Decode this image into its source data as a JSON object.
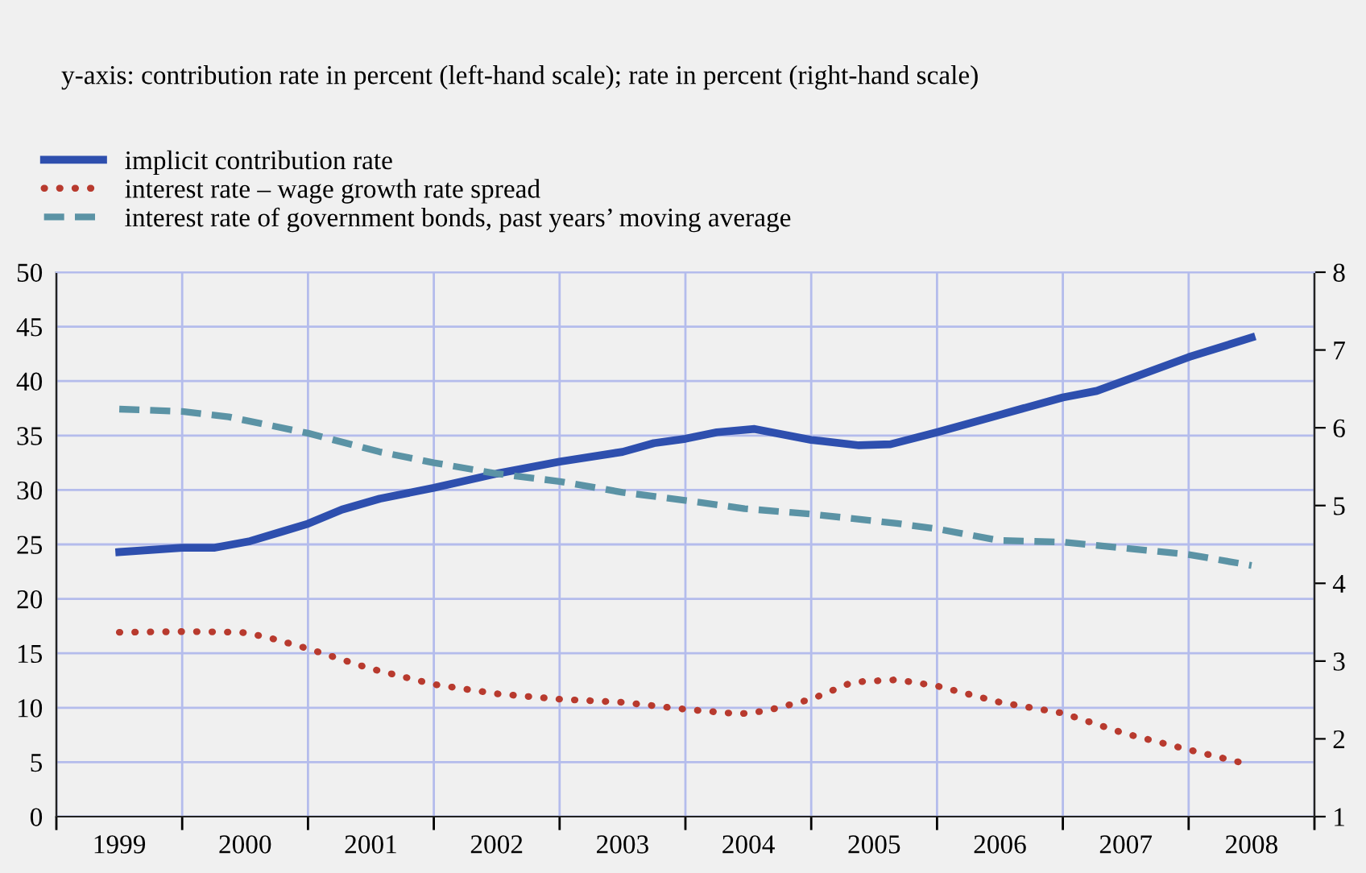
{
  "chart_data": {
    "type": "line",
    "title": "y-axis: contribution rate in percent (left-hand scale); rate in percent (right-hand scale)",
    "xlim": [
      1999,
      2009
    ],
    "xticks": [
      {
        "value": 1999,
        "label": null
      },
      {
        "value": 2000,
        "label": null
      },
      {
        "value": 2001,
        "label": null
      },
      {
        "value": 2002,
        "label": null
      },
      {
        "value": 2003,
        "label": null
      },
      {
        "value": 2004,
        "label": null
      },
      {
        "value": 2005,
        "label": null
      },
      {
        "value": 2006,
        "label": null
      },
      {
        "value": 2007,
        "label": null
      },
      {
        "value": 2008,
        "label": null
      },
      {
        "value": 2009,
        "label": null
      },
      {
        "value": 1999.5,
        "label": "1999"
      },
      {
        "value": 2000.5,
        "label": "2000"
      },
      {
        "value": 2001.5,
        "label": "2001"
      },
      {
        "value": 2002.5,
        "label": "2002"
      },
      {
        "value": 2003.5,
        "label": "2003"
      },
      {
        "value": 2004.5,
        "label": "2004"
      },
      {
        "value": 2005.5,
        "label": "2005"
      },
      {
        "value": 2006.5,
        "label": "2006"
      },
      {
        "value": 2007.5,
        "label": "2007"
      },
      {
        "value": 2008.5,
        "label": "2008"
      }
    ],
    "ylim": [
      0,
      50
    ],
    "yticks": [
      0,
      5,
      10,
      15,
      20,
      25,
      30,
      35,
      40,
      45,
      50
    ],
    "y2lim": [
      1,
      8
    ],
    "y2ticks": [
      1,
      2,
      3,
      4,
      5,
      6,
      7,
      8
    ],
    "grid": true,
    "legend": "top left",
    "marker": "none",
    "series": [
      {
        "name": "implicit contribution rate",
        "color": "#2e4fae",
        "line_style": "solid",
        "x": [
          1999.5,
          2000.0,
          2000.26,
          2000.54,
          2000.8,
          2001.0,
          2001.27,
          2001.57,
          2002.0,
          2002.5,
          2003.0,
          2003.5,
          2003.75,
          2004.0,
          2004.25,
          2004.55,
          2005.0,
          2005.38,
          2005.63,
          2006.0,
          2006.5,
          2007.0,
          2007.27,
          2008.0,
          2008.5
        ],
        "values": [
          24.3,
          24.7,
          24.7,
          25.3,
          26.2,
          26.9,
          28.2,
          29.2,
          30.2,
          31.5,
          32.6,
          33.5,
          34.3,
          34.7,
          35.3,
          35.6,
          34.6,
          34.1,
          34.2,
          35.3,
          36.9,
          38.5,
          39.1,
          42.2,
          44.0
        ]
      },
      {
        "name": "interest rate – wage growth rate spread",
        "color": "#b83a2e",
        "line_style": "dotted",
        "axis": "y2",
        "x": [
          1999.5,
          2000.05,
          2000.47,
          2000.67,
          2001.0,
          2001.48,
          2002.0,
          2002.5,
          2003.0,
          2003.5,
          2004.0,
          2004.43,
          2004.64,
          2005.0,
          2005.33,
          2005.68,
          2006.0,
          2006.5,
          2007.0,
          2007.49,
          2008.0,
          2008.43
        ],
        "values": [
          3.37,
          3.38,
          3.37,
          3.31,
          3.16,
          2.91,
          2.7,
          2.58,
          2.51,
          2.47,
          2.38,
          2.32,
          2.36,
          2.51,
          2.73,
          2.76,
          2.68,
          2.47,
          2.33,
          2.07,
          1.86,
          1.69
        ]
      },
      {
        "name": "interest rate of government bonds, past years’ moving average",
        "color": "#5b93a5",
        "line_style": "dashed",
        "axis": "y2",
        "x": [
          1999.5,
          2000.0,
          2000.37,
          2000.7,
          2001.0,
          2001.57,
          2002.0,
          2002.5,
          2003.0,
          2003.5,
          2004.07,
          2004.47,
          2005.0,
          2005.68,
          2006.0,
          2006.5,
          2007.0,
          2007.57,
          2008.0,
          2008.5
        ],
        "values": [
          6.24,
          6.21,
          6.14,
          6.03,
          5.93,
          5.69,
          5.55,
          5.41,
          5.31,
          5.17,
          5.05,
          4.96,
          4.89,
          4.77,
          4.7,
          4.55,
          4.53,
          4.44,
          4.37,
          4.23
        ]
      }
    ]
  }
}
